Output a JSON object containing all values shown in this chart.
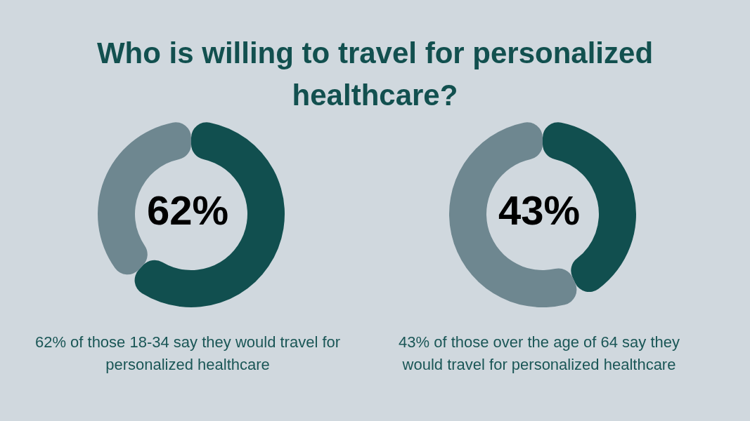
{
  "chart_data": [
    {
      "type": "donut",
      "title": "Who is willing to travel for personalized healthcare?",
      "categories": [
        null,
        null
      ],
      "values": [
        62,
        38
      ],
      "colors": [
        "#114f4f",
        "#6e8790"
      ],
      "annotations": [
        "62%",
        "62% of those 18-34 say they would travel for personalized healthcare"
      ]
    },
    {
      "type": "donut",
      "categories": [
        null,
        null
      ],
      "values": [
        43,
        57
      ],
      "colors": [
        "#114f4f",
        "#6e8790"
      ],
      "annotations": [
        "43%",
        "43% of those over the age of 64 say they would travel for personalized healthcare"
      ]
    }
  ]
}
